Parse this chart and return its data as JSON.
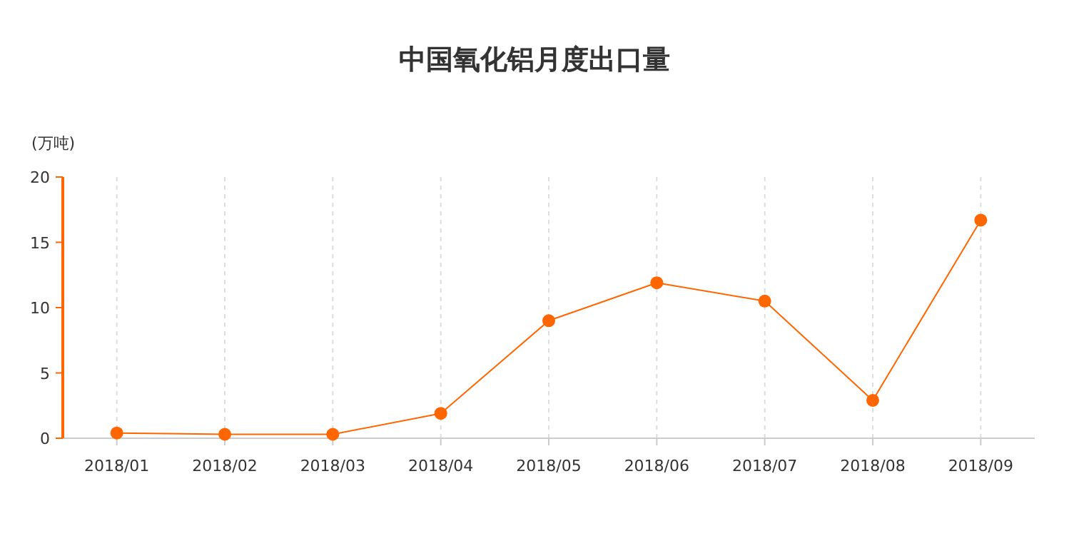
{
  "chart_data": {
    "type": "line",
    "title": "中国氧化铝月度出口量",
    "ylabel": "(万吨)",
    "categories": [
      "2018/01",
      "2018/02",
      "2018/03",
      "2018/04",
      "2018/05",
      "2018/06",
      "2018/07",
      "2018/08",
      "2018/09"
    ],
    "series": [
      {
        "color": "#ff6600",
        "values": [
          0.4,
          0.3,
          0.3,
          1.9,
          9.0,
          11.9,
          10.5,
          2.9,
          16.7
        ]
      }
    ],
    "ylim": [
      0,
      20
    ],
    "yticks": [
      0,
      5,
      10,
      15,
      20
    ],
    "grid": "x",
    "marker": "circle",
    "line_style": "solid"
  }
}
